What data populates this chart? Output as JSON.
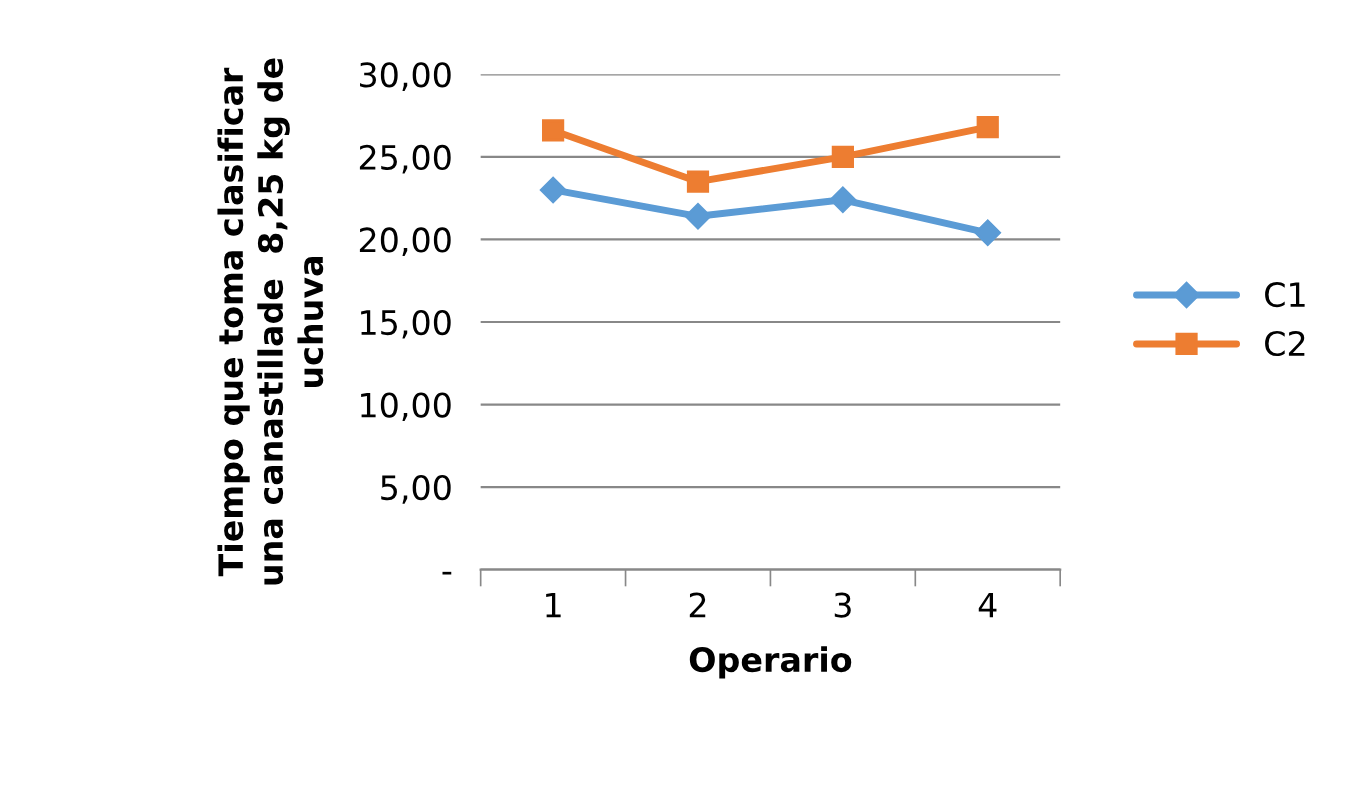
{
  "chart_data": {
    "type": "line",
    "xlabel": "Operario",
    "ylabel": "Tiempo que toma clasificar\nuna canastillade  8,25 kg de\nuchuva",
    "categories": [
      "1",
      "2",
      "3",
      "4"
    ],
    "series": [
      {
        "name": "C1",
        "color": "#5b9bd5",
        "values": [
          23.0,
          21.4,
          22.4,
          20.4
        ],
        "marker": "diamond"
      },
      {
        "name": "C2",
        "color": "#ed7d31",
        "values": [
          26.6,
          23.5,
          25.0,
          26.8
        ],
        "marker": "square"
      }
    ],
    "ylim": [
      0,
      30
    ],
    "yticks": [
      {
        "value": 0,
        "label": "-"
      },
      {
        "value": 5,
        "label": "5,00"
      },
      {
        "value": 10,
        "label": "10,00"
      },
      {
        "value": 15,
        "label": "15,00"
      },
      {
        "value": 20,
        "label": "20,00"
      },
      {
        "value": 25,
        "label": "25,00"
      },
      {
        "value": 30,
        "label": "30,00"
      }
    ],
    "grid": "y",
    "legend": "right",
    "line_style": "solid"
  }
}
